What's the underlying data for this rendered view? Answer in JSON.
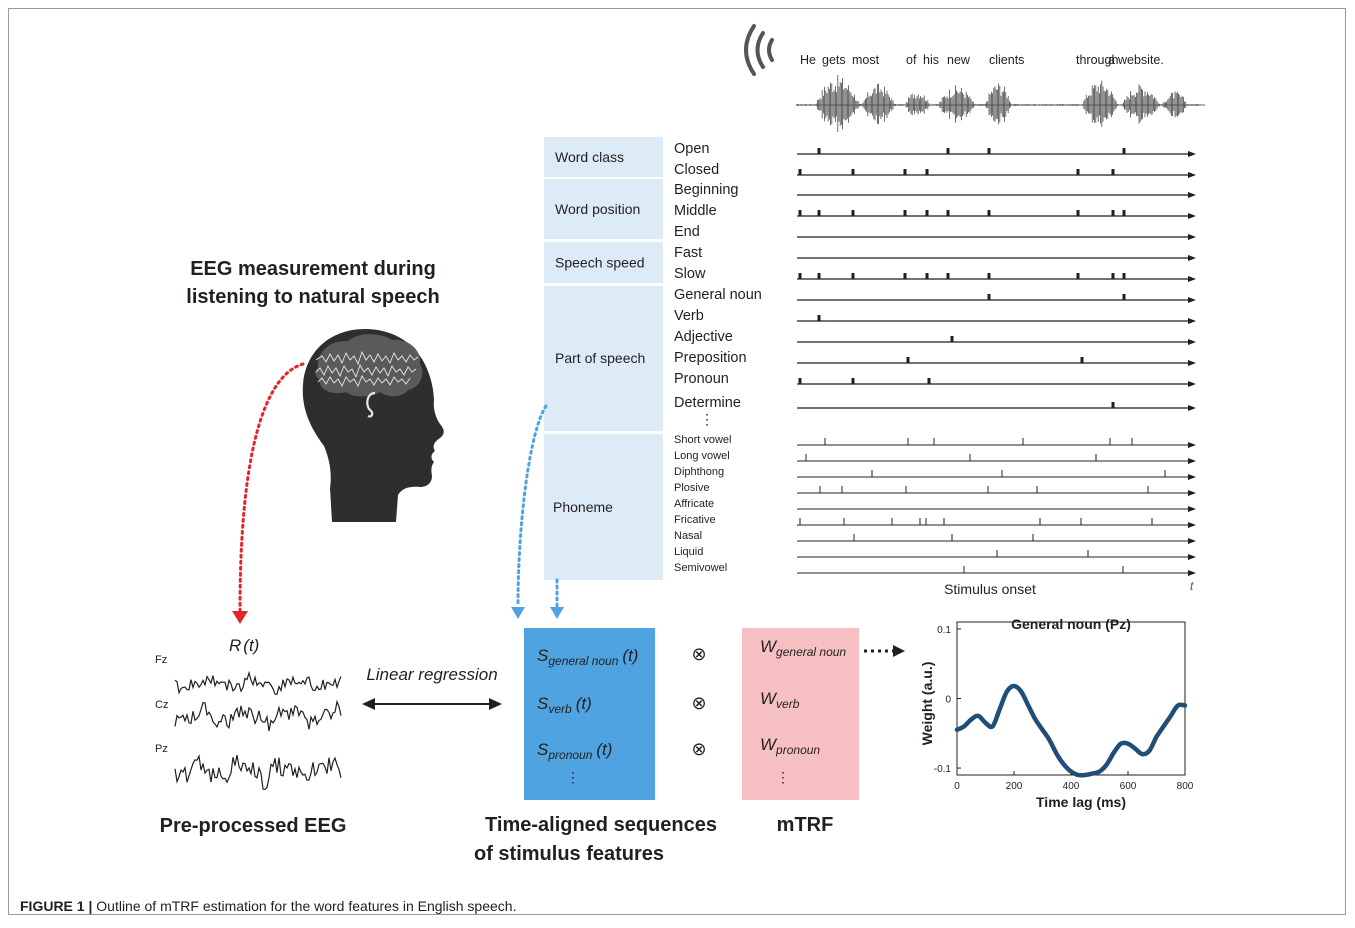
{
  "sentence_words": [
    "He",
    "gets",
    "most",
    "of",
    "his",
    "new",
    "clients",
    "through",
    "a",
    "website."
  ],
  "eeg": {
    "title_line1": "EEG measurement during",
    "title_line2": "listening to natural speech",
    "response_label": "R",
    "response_arg": "(t)",
    "channels": [
      "Fz",
      "Cz",
      "Pz"
    ],
    "caption": "Pre-processed EEG"
  },
  "regression_label": "Linear regression",
  "feature_groups": [
    {
      "name": "Word class",
      "rows": [
        "Open",
        "Closed"
      ]
    },
    {
      "name": "Word position",
      "rows": [
        "Beginning",
        "Middle",
        "End"
      ]
    },
    {
      "name": "Speech speed",
      "rows": [
        "Fast",
        "Slow"
      ]
    },
    {
      "name": "Part of speech",
      "rows": [
        "General noun",
        "Verb",
        "Adjective",
        "Preposition",
        "Pronoun",
        "Determine"
      ]
    },
    {
      "name": "Phoneme",
      "rows": [
        "Short vowel",
        "Long vowel",
        "Diphthong",
        "Plosive",
        "Affricate",
        "Fricative",
        "Nasal",
        "Liquid",
        "Semivowel"
      ]
    }
  ],
  "ellipsis": "⋮",
  "timeline": {
    "axis_label": "Stimulus onset",
    "axis_var": "t"
  },
  "stimulus_box": {
    "items": [
      {
        "symbol": "S",
        "sub": "general noun",
        "arg": "(t)"
      },
      {
        "symbol": "S",
        "sub": "verb",
        "arg": "(t)"
      },
      {
        "symbol": "S",
        "sub": "pronoun",
        "arg": "(t)"
      }
    ],
    "caption_line1": "Time-aligned sequences",
    "caption_line2": "of stimulus features"
  },
  "convolution_symbol": "⊗",
  "mtrf_box": {
    "items": [
      {
        "symbol": "W",
        "sub": "general noun"
      },
      {
        "symbol": "W",
        "sub": "verb"
      },
      {
        "symbol": "W",
        "sub": "pronoun"
      }
    ],
    "caption": "mTRF"
  },
  "chart_data": {
    "type": "line",
    "title": "General noun (Pz)",
    "xlabel": "Time lag (ms)",
    "ylabel": "Weight (a.u.)",
    "xlim": [
      0,
      800
    ],
    "ylim": [
      -0.11,
      0.11
    ],
    "xticks": [
      0,
      200,
      400,
      600,
      800
    ],
    "yticks": [
      0.1,
      0,
      -0.1
    ],
    "ytick_labels": [
      "0.1",
      "0",
      "-0.1"
    ],
    "grid": false,
    "series": [
      {
        "color": "#1f4e79",
        "x": [
          0,
          25,
          50,
          75,
          100,
          125,
          150,
          175,
          200,
          225,
          250,
          275,
          300,
          325,
          350,
          375,
          400,
          425,
          450,
          475,
          500,
          525,
          550,
          575,
          600,
          625,
          650,
          675,
          700,
          725,
          750,
          775,
          800
        ],
        "y": [
          -0.045,
          -0.04,
          -0.03,
          -0.025,
          -0.035,
          -0.04,
          -0.015,
          0.01,
          0.018,
          0.01,
          -0.01,
          -0.03,
          -0.045,
          -0.06,
          -0.08,
          -0.095,
          -0.105,
          -0.11,
          -0.11,
          -0.108,
          -0.105,
          -0.095,
          -0.078,
          -0.065,
          -0.065,
          -0.072,
          -0.08,
          -0.075,
          -0.055,
          -0.04,
          -0.025,
          -0.01,
          -0.01
        ]
      }
    ]
  },
  "figure_caption": {
    "lead": "FIGURE 1 |",
    "text": " Outline of mTRF estimation for the word features in English speech."
  },
  "colors": {
    "label_box": "#dcebf5",
    "stimulus_box": "#4fa3e0",
    "mtrf_box": "#f6c0c2",
    "red_dots": "#e3262b",
    "blue_dots": "#4fa3e0",
    "head": "#2e2e30",
    "brain": "#5a5a5c",
    "trf_line": "#1f4e79"
  }
}
